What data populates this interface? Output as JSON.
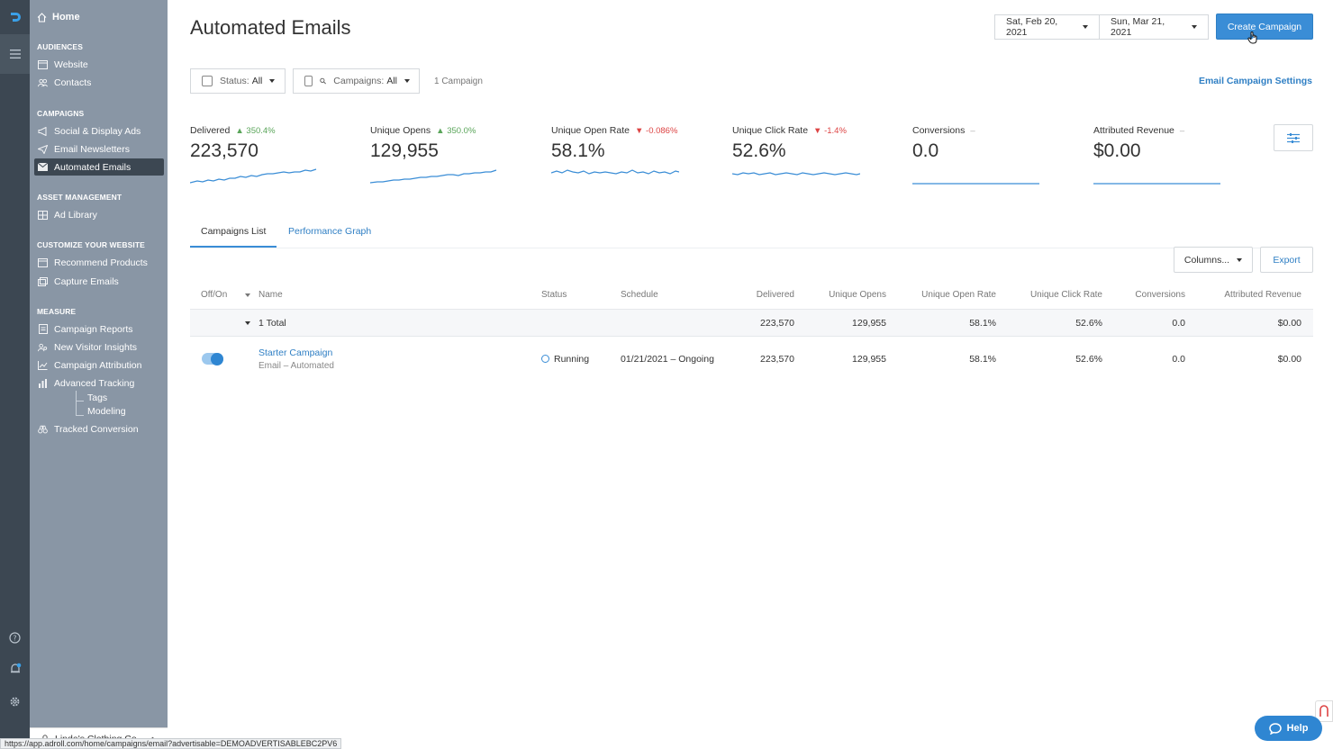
{
  "sidebar": {
    "home": "Home",
    "sections": [
      {
        "title": "AUDIENCES",
        "items": [
          "Website",
          "Contacts"
        ]
      },
      {
        "title": "CAMPAIGNS",
        "items": [
          "Social & Display Ads",
          "Email Newsletters",
          "Automated Emails"
        ]
      },
      {
        "title": "ASSET MANAGEMENT",
        "items": [
          "Ad Library"
        ]
      },
      {
        "title": "CUSTOMIZE YOUR WEBSITE",
        "items": [
          "Recommend Products",
          "Capture Emails"
        ]
      },
      {
        "title": "MEASURE",
        "items": [
          "Campaign Reports",
          "New Visitor Insights",
          "Campaign Attribution",
          "Advanced Tracking"
        ]
      }
    ],
    "advanced_sub": [
      "Tags",
      "Modeling"
    ],
    "tracked_conversion": "Tracked Conversion",
    "account": "Linda's Clothing Co."
  },
  "header": {
    "title": "Automated Emails",
    "date_start": "Sat, Feb 20, 2021",
    "date_end": "Sun, Mar 21, 2021",
    "create_button": "Create Campaign"
  },
  "filters": {
    "status_label": "Status:",
    "status_value": "All",
    "campaigns_label": "Campaigns:",
    "campaigns_value": "All",
    "count": "1 Campaign",
    "settings_link": "Email Campaign Settings"
  },
  "metrics": [
    {
      "label": "Delivered",
      "delta": "350.4%",
      "value": "223,570"
    },
    {
      "label": "Unique Opens",
      "delta": "350.0%",
      "value": "129,955"
    },
    {
      "label": "Unique Open Rate",
      "delta": "-0.086%",
      "value": "58.1%"
    },
    {
      "label": "Unique Click Rate",
      "delta": "-1.4%",
      "value": "52.6%"
    },
    {
      "label": "Conversions",
      "delta": "–",
      "value": "0.0"
    },
    {
      "label": "Attributed Revenue",
      "delta": "–",
      "value": "$0.00"
    }
  ],
  "tabs": {
    "list": "Campaigns List",
    "graph": "Performance Graph"
  },
  "table_tools": {
    "columns": "Columns...",
    "export": "Export"
  },
  "table": {
    "headers": [
      "Off/On",
      "Name",
      "Status",
      "Schedule",
      "Delivered",
      "Unique Opens",
      "Unique Open Rate",
      "Unique Click Rate",
      "Conversions",
      "Attributed Revenue"
    ],
    "total": {
      "label": "1 Total",
      "delivered": "223,570",
      "opens": "129,955",
      "open_rate": "58.1%",
      "click_rate": "52.6%",
      "conversions": "0.0",
      "revenue": "$0.00"
    },
    "rows": [
      {
        "name": "Starter Campaign",
        "type": "Email – Automated",
        "status": "Running",
        "schedule": "01/21/2021 – Ongoing",
        "delivered": "223,570",
        "opens": "129,955",
        "open_rate": "58.1%",
        "click_rate": "52.6%",
        "conversions": "0.0",
        "revenue": "$0.00"
      }
    ]
  },
  "help": "Help",
  "status_url": "https://app.adroll.com/home/campaigns/email?advertisable=DEMOADVERTISABLEBC2PV6"
}
